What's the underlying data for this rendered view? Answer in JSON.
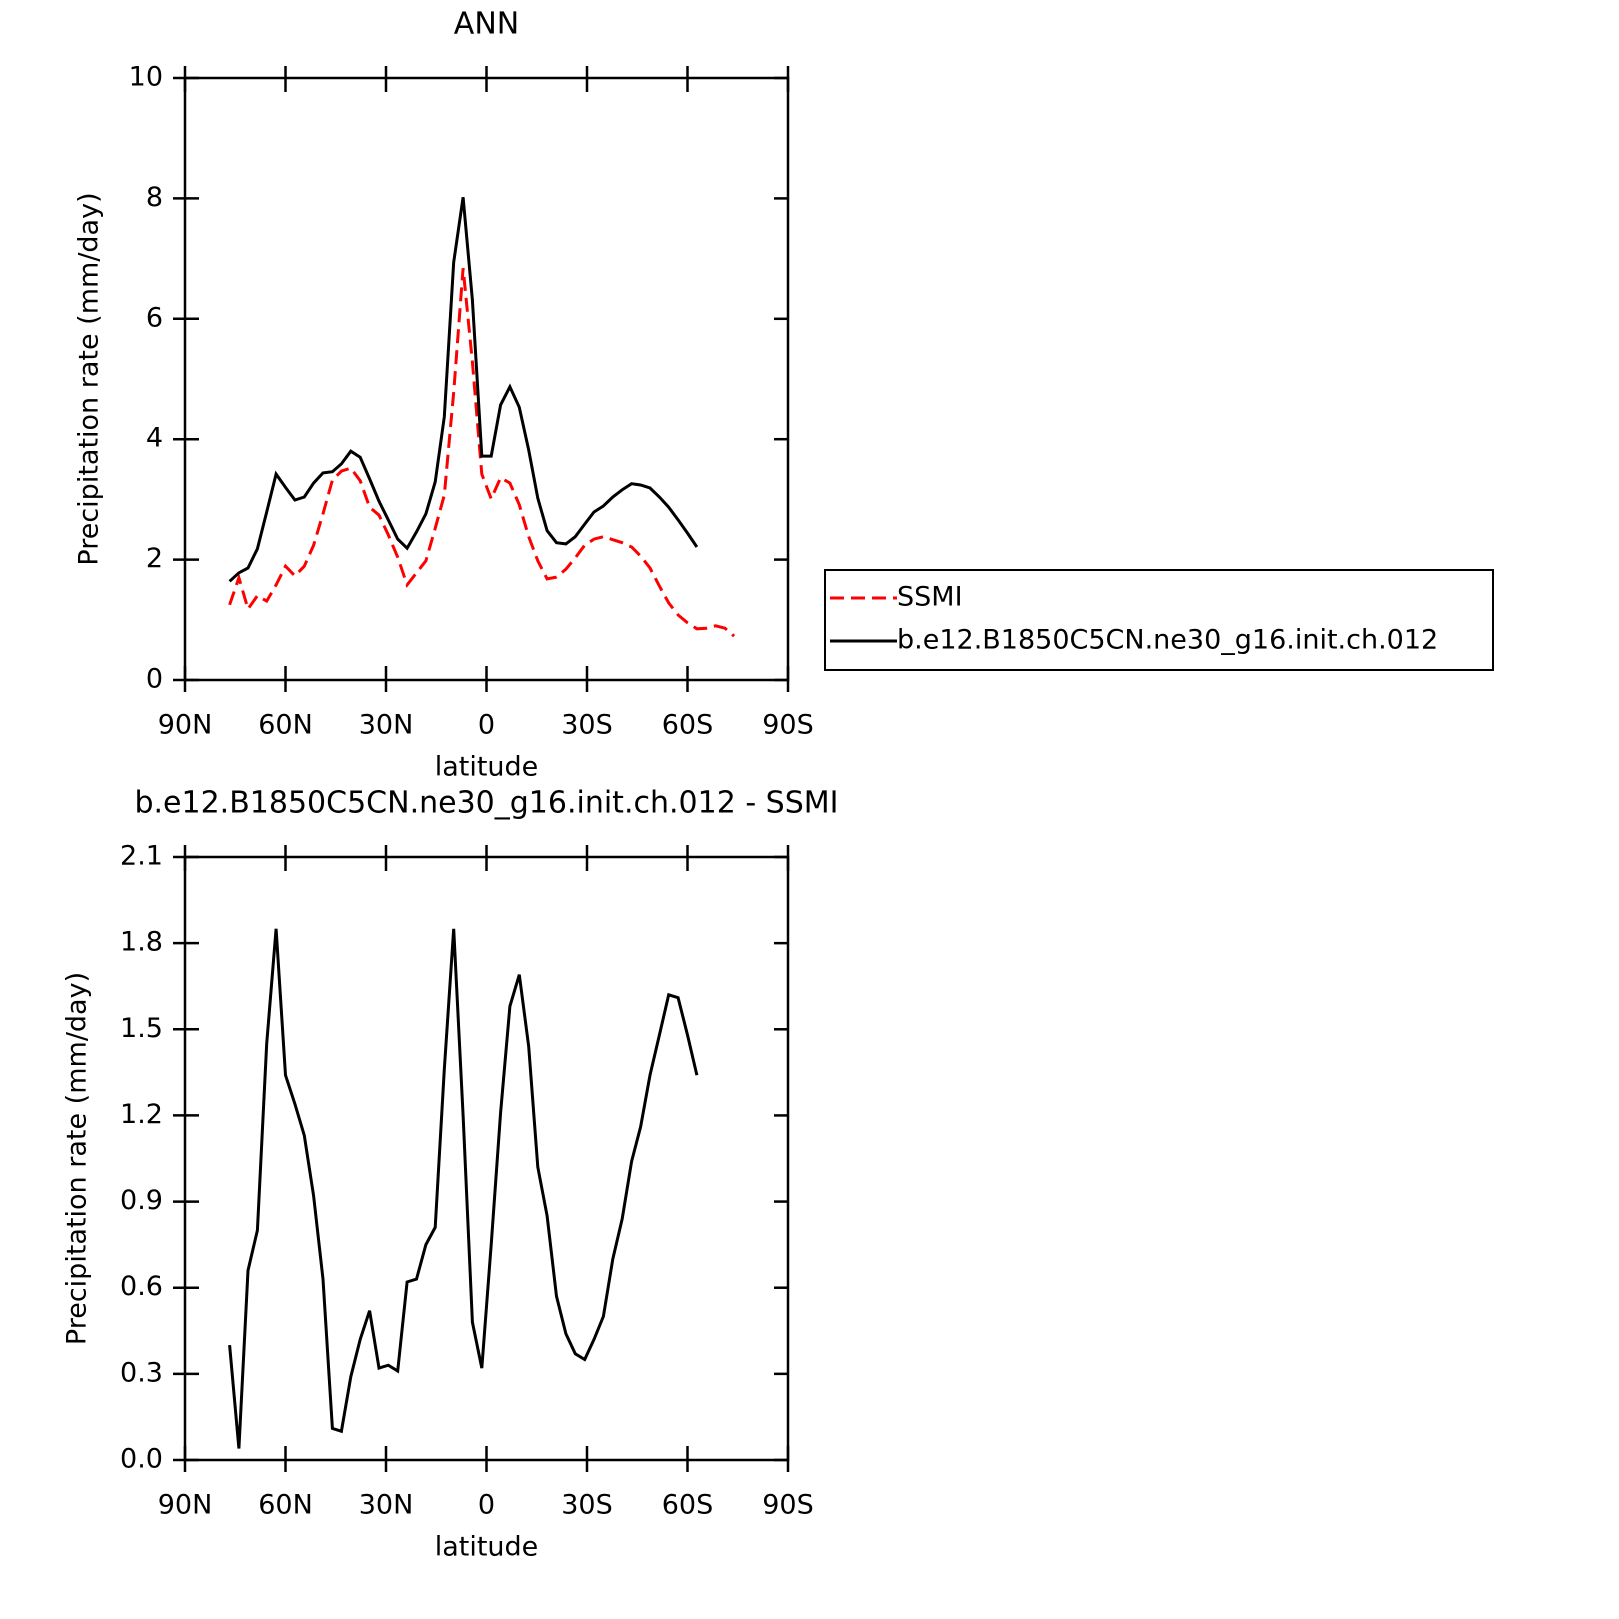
{
  "chart_data": [
    {
      "type": "line",
      "title": "ANN",
      "xlabel": "latitude",
      "ylabel": "Precipitation rate (mm/day)",
      "x": [
        76.7,
        73.9,
        71.2,
        68.4,
        65.6,
        62.8,
        60.0,
        57.2,
        54.4,
        51.6,
        48.8,
        46.0,
        43.3,
        40.5,
        37.7,
        34.9,
        32.1,
        29.3,
        26.5,
        23.7,
        20.9,
        18.1,
        15.3,
        12.6,
        9.8,
        7.0,
        4.2,
        1.4,
        -1.4,
        -4.2,
        -7.0,
        -9.8,
        -12.6,
        -15.3,
        -18.1,
        -20.9,
        -23.7,
        -26.5,
        -29.3,
        -32.1,
        -34.9,
        -37.7,
        -40.5,
        -43.3,
        -46.0,
        -48.8,
        -51.6,
        -54.4,
        -57.2,
        -60.0,
        -62.8,
        -65.6,
        -68.4,
        -71.2,
        -73.9
      ],
      "series": [
        {
          "name": "SSMI",
          "color": "#ff0000",
          "linestyle": "dashed",
          "values": [
            1.25,
            1.7,
            1.18,
            1.4,
            1.31,
            1.58,
            1.89,
            1.73,
            1.89,
            2.24,
            2.76,
            3.32,
            3.47,
            3.52,
            3.31,
            2.87,
            2.74,
            2.41,
            2.04,
            1.58,
            1.78,
            1.98,
            2.52,
            3.07,
            4.78,
            6.84,
            5.28,
            3.42,
            3.01,
            3.36,
            3.27,
            2.91,
            2.38,
            1.98,
            1.68,
            1.71,
            1.84,
            2.03,
            2.24,
            2.34,
            2.38,
            2.33,
            2.28,
            2.21,
            2.06,
            1.86,
            1.56,
            1.28,
            1.08,
            0.95,
            0.85,
            0.86,
            0.9,
            0.86,
            0.73
          ]
        },
        {
          "name": "b.e12.B1850C5CN.ne30_g16.init.ch.012",
          "color": "#000000",
          "linestyle": "solid",
          "values": [
            1.64,
            1.78,
            1.86,
            2.18,
            2.79,
            3.42,
            3.2,
            2.99,
            3.04,
            3.27,
            3.44,
            3.46,
            3.59,
            3.8,
            3.7,
            3.34,
            2.97,
            2.66,
            2.34,
            2.19,
            2.46,
            2.76,
            3.29,
            4.37,
            6.94,
            8.02,
            6.31,
            3.72,
            3.72,
            4.57,
            4.87,
            4.53,
            3.82,
            3.02,
            2.48,
            2.28,
            2.26,
            2.38,
            2.59,
            2.79,
            2.89,
            3.04,
            3.16,
            3.26,
            3.24,
            3.19,
            3.04,
            2.87,
            2.66,
            2.44,
            2.21,
            null,
            null,
            null,
            null
          ]
        }
      ],
      "xlim": [
        90,
        -90
      ],
      "xticks": [
        {
          "value": 90,
          "label": "90N"
        },
        {
          "value": 60,
          "label": "60N"
        },
        {
          "value": 30,
          "label": "30N"
        },
        0,
        {
          "value": -30,
          "label": "30S"
        },
        {
          "value": -60,
          "label": "60S"
        },
        {
          "value": -90,
          "label": "90S"
        }
      ],
      "ylim": [
        0,
        10
      ],
      "yticks": [
        0,
        2,
        4,
        6,
        8,
        10
      ],
      "legend": "right"
    },
    {
      "type": "line",
      "title": "b.e12.B1850C5CN.ne30_g16.init.ch.012 - SSMI",
      "xlabel": "latitude",
      "ylabel": "Precipitation rate (mm/day)",
      "x": [
        76.7,
        73.9,
        71.2,
        68.4,
        65.6,
        62.8,
        60.0,
        57.2,
        54.4,
        51.6,
        48.8,
        46.0,
        43.3,
        40.5,
        37.7,
        34.9,
        32.1,
        29.3,
        26.5,
        23.7,
        20.9,
        18.1,
        15.3,
        12.6,
        9.8,
        7.0,
        4.2,
        1.4,
        -1.4,
        -4.2,
        -7.0,
        -9.8,
        -12.6,
        -15.3,
        -18.1,
        -20.9,
        -23.7,
        -26.5,
        -29.3,
        -32.1,
        -34.9,
        -37.7,
        -40.5,
        -43.3,
        -46.0,
        -48.8,
        -51.6,
        -54.4,
        -57.2,
        -60.0,
        -62.8
      ],
      "series": [
        {
          "color": "#000000",
          "linestyle": "solid",
          "values": [
            0.4,
            0.04,
            0.66,
            0.8,
            1.45,
            1.85,
            1.34,
            1.24,
            1.13,
            0.92,
            0.63,
            0.11,
            0.1,
            0.29,
            0.42,
            0.52,
            0.32,
            0.33,
            0.31,
            0.62,
            0.63,
            0.75,
            0.81,
            1.36,
            1.85,
            1.2,
            0.48,
            0.32,
            0.75,
            1.21,
            1.58,
            1.69,
            1.44,
            1.02,
            0.85,
            0.57,
            0.44,
            0.37,
            0.35,
            0.42,
            0.5,
            0.7,
            0.84,
            1.04,
            1.16,
            1.34,
            1.48,
            1.62,
            1.61,
            1.48,
            1.34
          ]
        }
      ],
      "xlim": [
        90,
        -90
      ],
      "xticks": [
        {
          "value": 90,
          "label": "90N"
        },
        {
          "value": 60,
          "label": "60N"
        },
        {
          "value": 30,
          "label": "30N"
        },
        0,
        {
          "value": -30,
          "label": "30S"
        },
        {
          "value": -60,
          "label": "60S"
        },
        {
          "value": -90,
          "label": "90S"
        }
      ],
      "ylim": [
        0,
        2.1
      ],
      "yticks": [
        {
          "value": 0,
          "label": "0.0"
        },
        0.3,
        0.6,
        0.9,
        1.2,
        1.5,
        1.8,
        2.1
      ]
    }
  ]
}
